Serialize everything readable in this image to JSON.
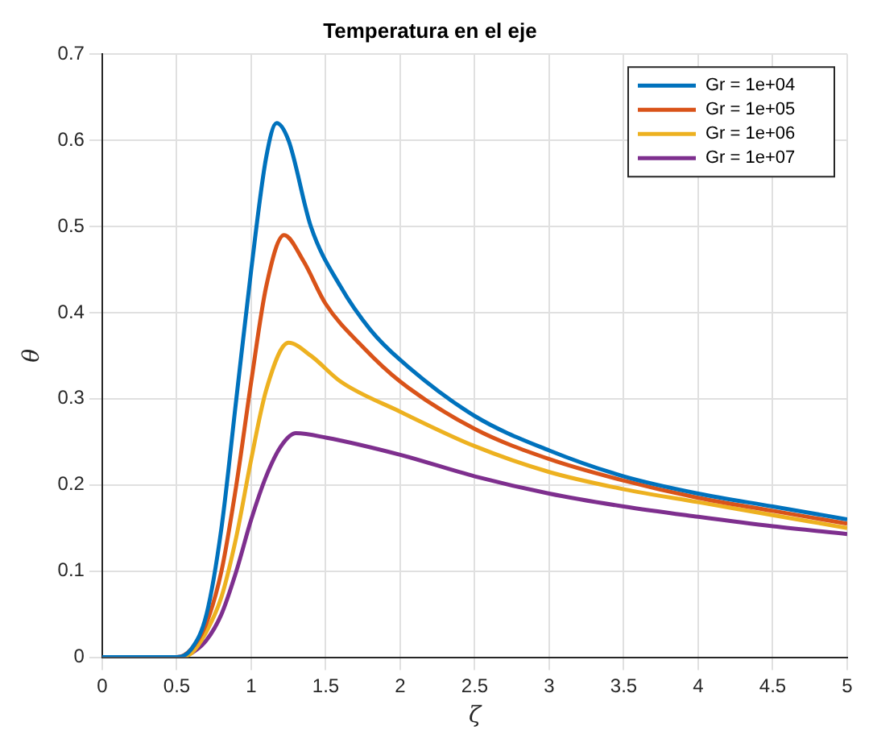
{
  "chart_data": {
    "type": "line",
    "title": "Temperatura en el eje",
    "xlabel": "ζ",
    "ylabel": "θ",
    "xlim": [
      0,
      5
    ],
    "ylim": [
      0,
      0.7
    ],
    "xticks": [
      0,
      0.5,
      1,
      1.5,
      2,
      2.5,
      3,
      3.5,
      4,
      4.5,
      5
    ],
    "yticks": [
      0,
      0.1,
      0.2,
      0.3,
      0.4,
      0.5,
      0.6,
      0.7
    ],
    "grid": true,
    "legend": "top right",
    "marker": "none",
    "line_style": "solid",
    "series": [
      {
        "name": "Gr = 1e+04",
        "color": "#0072bd",
        "x": [
          0,
          0.5,
          0.6,
          0.7,
          0.8,
          0.9,
          1.0,
          1.1,
          1.17,
          1.25,
          1.4,
          1.6,
          1.8,
          2,
          2.5,
          3,
          3.5,
          4,
          4.5,
          5
        ],
        "values": [
          0,
          0,
          0.01,
          0.05,
          0.15,
          0.3,
          0.45,
          0.58,
          0.62,
          0.6,
          0.5,
          0.43,
          0.38,
          0.345,
          0.28,
          0.24,
          0.21,
          0.19,
          0.175,
          0.16
        ]
      },
      {
        "name": "Gr = 1e+05",
        "color": "#d95319",
        "x": [
          0,
          0.5,
          0.6,
          0.7,
          0.8,
          0.9,
          1.0,
          1.1,
          1.22,
          1.35,
          1.5,
          1.75,
          2,
          2.5,
          3,
          3.5,
          4,
          4.5,
          5
        ],
        "values": [
          0,
          0,
          0.01,
          0.04,
          0.1,
          0.2,
          0.32,
          0.43,
          0.49,
          0.46,
          0.41,
          0.36,
          0.32,
          0.265,
          0.23,
          0.205,
          0.185,
          0.17,
          0.155
        ]
      },
      {
        "name": "Gr = 1e+06",
        "color": "#edb120",
        "x": [
          0,
          0.5,
          0.6,
          0.7,
          0.8,
          0.9,
          1.0,
          1.1,
          1.25,
          1.4,
          1.6,
          2,
          2.5,
          3,
          3.5,
          4,
          4.5,
          5
        ],
        "values": [
          0,
          0,
          0.005,
          0.03,
          0.07,
          0.14,
          0.23,
          0.31,
          0.365,
          0.35,
          0.32,
          0.285,
          0.245,
          0.215,
          0.195,
          0.18,
          0.165,
          0.15
        ]
      },
      {
        "name": "Gr = 1e+07",
        "color": "#7e2f8e",
        "x": [
          0,
          0.5,
          0.6,
          0.7,
          0.8,
          0.9,
          1.0,
          1.1,
          1.2,
          1.3,
          1.5,
          2,
          2.5,
          3,
          3.5,
          4,
          4.5,
          5
        ],
        "values": [
          0,
          0,
          0.005,
          0.02,
          0.05,
          0.1,
          0.16,
          0.21,
          0.245,
          0.26,
          0.255,
          0.235,
          0.21,
          0.19,
          0.175,
          0.163,
          0.152,
          0.143
        ]
      }
    ]
  }
}
